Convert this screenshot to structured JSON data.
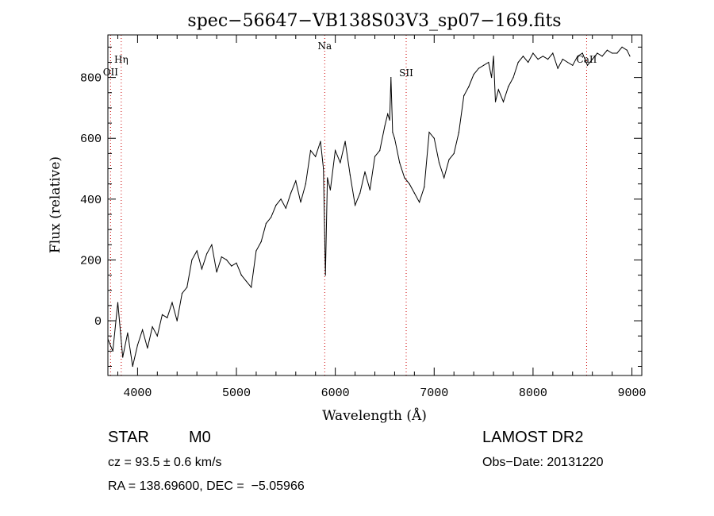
{
  "chart_data": {
    "type": "line",
    "title": "spec−56647−VB138S03V3_sp07−169.fits",
    "xlabel": "Wavelength (Å)",
    "ylabel": "Flux (relative)",
    "xlim": [
      3700,
      9100
    ],
    "ylim": [
      -180,
      940
    ],
    "x_ticks": [
      4000,
      5000,
      6000,
      7000,
      8000,
      9000
    ],
    "y_ticks": [
      0,
      200,
      400,
      600,
      800
    ],
    "x_minor_step": 200,
    "y_minor_step": 50,
    "line_color": "#000000",
    "marker_color": "#cc0000",
    "lines": [
      {
        "label": "Hη",
        "x": 3835
      },
      {
        "label": "OII",
        "x": 3727
      },
      {
        "label": "Na",
        "x": 5893
      },
      {
        "label": "SII",
        "x": 6717
      },
      {
        "label": "CaII",
        "x": 8542
      }
    ],
    "series": [
      {
        "x": [
          3700,
          3750,
          3800,
          3850,
          3900,
          3950,
          4000,
          4050,
          4100,
          4150,
          4200,
          4250,
          4300,
          4350,
          4400,
          4450,
          4500,
          4550,
          4600,
          4650,
          4700,
          4750,
          4800,
          4850,
          4900,
          4950,
          5000,
          5050,
          5100,
          5150,
          5200,
          5250,
          5300,
          5350,
          5400,
          5450,
          5500,
          5550,
          5600,
          5650,
          5700,
          5750,
          5800,
          5850,
          5880,
          5900,
          5920,
          5950,
          6000,
          6050,
          6100,
          6150,
          6200,
          6250,
          6300,
          6350,
          6400,
          6450,
          6500,
          6530,
          6550,
          6563,
          6580,
          6600,
          6650,
          6700,
          6750,
          6800,
          6850,
          6900,
          6950,
          7000,
          7050,
          7100,
          7150,
          7200,
          7250,
          7300,
          7350,
          7400,
          7450,
          7500,
          7550,
          7580,
          7600,
          7620,
          7650,
          7700,
          7750,
          7800,
          7850,
          7900,
          7950,
          8000,
          8050,
          8100,
          8150,
          8200,
          8250,
          8300,
          8350,
          8400,
          8450,
          8500,
          8550,
          8600,
          8650,
          8700,
          8750,
          8800,
          8850,
          8900,
          8950,
          8980
        ],
        "y": [
          -60,
          -100,
          60,
          -120,
          -40,
          -150,
          -80,
          -30,
          -90,
          -20,
          -50,
          20,
          10,
          60,
          0,
          90,
          110,
          200,
          230,
          170,
          220,
          250,
          160,
          210,
          200,
          180,
          190,
          150,
          130,
          110,
          230,
          260,
          320,
          340,
          380,
          400,
          370,
          420,
          460,
          390,
          450,
          560,
          540,
          590,
          500,
          150,
          470,
          430,
          560,
          520,
          590,
          480,
          380,
          420,
          490,
          430,
          540,
          560,
          640,
          680,
          660,
          800,
          620,
          600,
          520,
          470,
          450,
          420,
          390,
          440,
          620,
          600,
          520,
          470,
          530,
          550,
          620,
          740,
          770,
          810,
          830,
          840,
          850,
          800,
          870,
          720,
          760,
          720,
          770,
          800,
          850,
          870,
          850,
          880,
          860,
          870,
          860,
          880,
          830,
          860,
          850,
          840,
          870,
          880,
          840,
          860,
          880,
          870,
          890,
          880,
          880,
          900,
          890,
          870
        ]
      }
    ]
  },
  "footer": {
    "obj_class": "STAR",
    "subclass": "M0",
    "survey": "LAMOST DR2",
    "cz": "cz = 93.5 ± 0.6 km/s",
    "obs_date": "Obs−Date: 20131220",
    "radec": "RA = 138.69600, DEC =  −5.05966"
  }
}
